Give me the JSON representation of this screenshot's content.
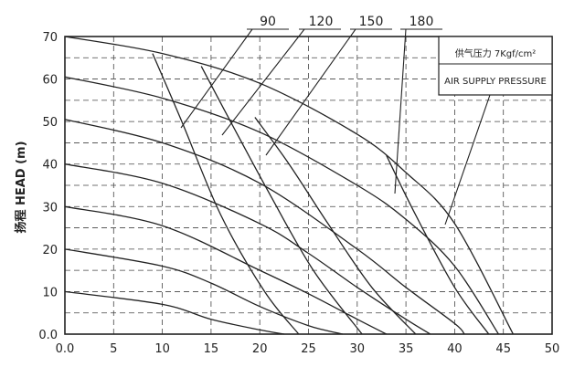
{
  "chart_data": {
    "type": "line",
    "ylabel": "扬程 HEAD (m)",
    "xlim": [
      0,
      50
    ],
    "ylim": [
      0,
      70
    ],
    "x_ticks": [
      "0.0",
      "5",
      "10",
      "15",
      "20",
      "25",
      "30",
      "35",
      "40",
      "45",
      "50"
    ],
    "y_ticks": [
      "0.0",
      "10",
      "20",
      "30",
      "40",
      "50",
      "60",
      "70"
    ],
    "grid": true,
    "legend_box": {
      "line1": "供气压力 7Kgf/cm²",
      "line2": "AIR SUPPLY PRESSURE"
    },
    "pressure_series": [
      {
        "x": [
          0,
          10,
          20,
          30,
          35,
          40,
          46
        ],
        "y": [
          70,
          66,
          59,
          47,
          38,
          26,
          0
        ]
      },
      {
        "x": [
          0,
          10,
          20,
          30,
          35,
          40,
          44.5
        ],
        "y": [
          60.5,
          55.5,
          47.5,
          35,
          27,
          16,
          0
        ]
      },
      {
        "x": [
          0,
          10,
          20,
          30,
          35,
          40,
          41
        ],
        "y": [
          50.5,
          45,
          35.5,
          20,
          11,
          2.5,
          0
        ]
      },
      {
        "x": [
          0,
          10,
          20,
          25,
          30,
          35,
          37.5
        ],
        "y": [
          40,
          35.5,
          26,
          19,
          11,
          3.5,
          0
        ]
      },
      {
        "x": [
          0,
          10,
          20,
          25,
          30,
          33
        ],
        "y": [
          30,
          25.5,
          15,
          9.5,
          3.5,
          0
        ]
      },
      {
        "x": [
          0,
          10,
          15,
          20,
          25,
          28.5
        ],
        "y": [
          20,
          16,
          12,
          6.5,
          2,
          0
        ]
      },
      {
        "x": [
          0,
          10,
          15,
          20,
          22.5
        ],
        "y": [
          10,
          7,
          3.5,
          1,
          0
        ]
      }
    ],
    "air_consumption_series": [
      {
        "label": "90",
        "x": [
          9,
          12,
          16,
          20.5,
          24
        ],
        "y": [
          66,
          50,
          28,
          10,
          0
        ]
      },
      {
        "label": "120",
        "x": [
          14,
          17,
          21,
          25.5,
          30.5
        ],
        "y": [
          63,
          50,
          33,
          15,
          0
        ]
      },
      {
        "label": "150",
        "x": [
          19.5,
          23,
          27,
          31.5,
          36
        ],
        "y": [
          51,
          40,
          26,
          11,
          0
        ]
      },
      {
        "label": "180",
        "x": [
          33,
          36,
          40,
          43.5
        ],
        "y": [
          42,
          28,
          11,
          0
        ]
      }
    ]
  }
}
